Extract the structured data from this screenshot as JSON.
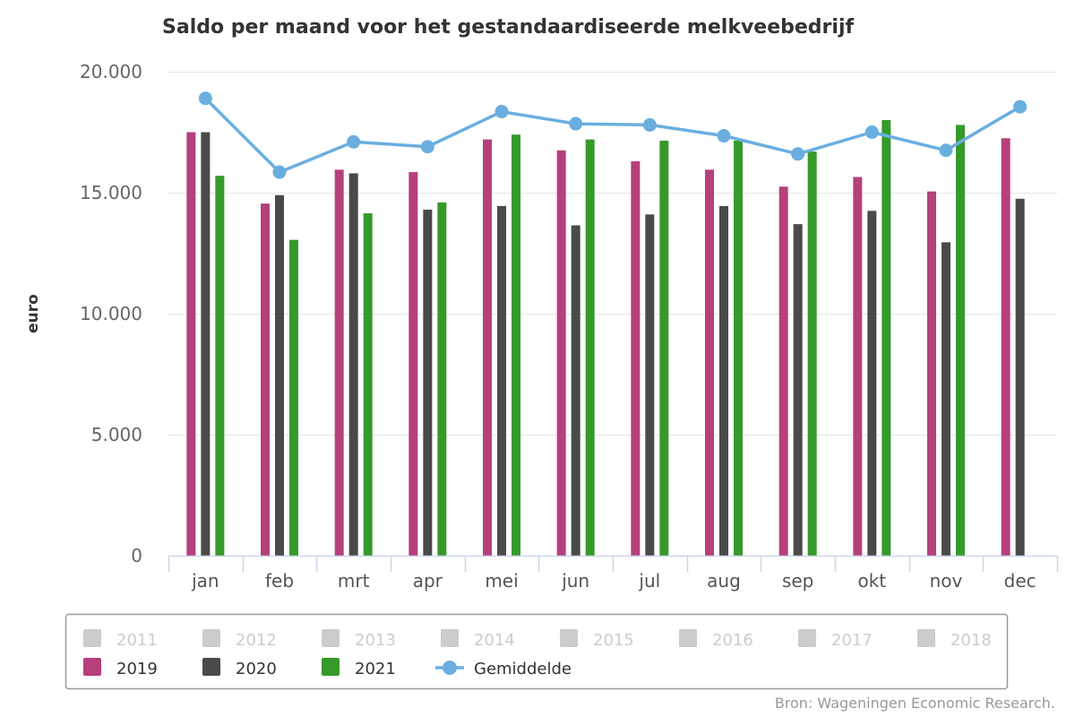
{
  "chart_data": {
    "type": "bar",
    "title": "Saldo per maand voor het gestandaardiseerde melkveebedrijf",
    "ylabel": "euro",
    "xlabel": "",
    "ylim": [
      0,
      20000
    ],
    "yticks": [
      0,
      5000,
      10000,
      15000,
      20000
    ],
    "ytick_labels": [
      "0",
      "5.000",
      "10.000",
      "15.000",
      "20.000"
    ],
    "grid": "horizontal",
    "categories": [
      "jan",
      "feb",
      "mrt",
      "apr",
      "mei",
      "jun",
      "jul",
      "aug",
      "sep",
      "okt",
      "nov",
      "dec"
    ],
    "series": [
      {
        "name": "2019",
        "type": "bar",
        "color": "#b5407c",
        "values": [
          17500,
          14550,
          15950,
          15850,
          17200,
          16750,
          16300,
          15950,
          15250,
          15650,
          15050,
          17250
        ]
      },
      {
        "name": "2020",
        "type": "bar",
        "color": "#4a4a4a",
        "values": [
          17500,
          14900,
          15800,
          14300,
          14450,
          13650,
          14100,
          14450,
          13700,
          14250,
          12950,
          14750
        ]
      },
      {
        "name": "2021",
        "type": "bar",
        "color": "#359a2a",
        "values": [
          15700,
          13050,
          14150,
          14600,
          17400,
          17200,
          17150,
          17150,
          16700,
          18000,
          17800,
          null
        ]
      },
      {
        "name": "Gemiddelde",
        "type": "line",
        "color": "#6aaee0",
        "values": [
          18900,
          15850,
          17100,
          16900,
          18350,
          17850,
          17800,
          17350,
          16600,
          17500,
          16750,
          18550
        ]
      }
    ],
    "legend": {
      "position": "bottom",
      "hidden_items": [
        "2011",
        "2012",
        "2013",
        "2014",
        "2015",
        "2016",
        "2017",
        "2018"
      ],
      "hidden_color": "#cccccc",
      "visible_items": [
        "2019",
        "2020",
        "2021",
        "Gemiddelde"
      ]
    },
    "credit": "Bron: Wageningen Economic Research."
  }
}
